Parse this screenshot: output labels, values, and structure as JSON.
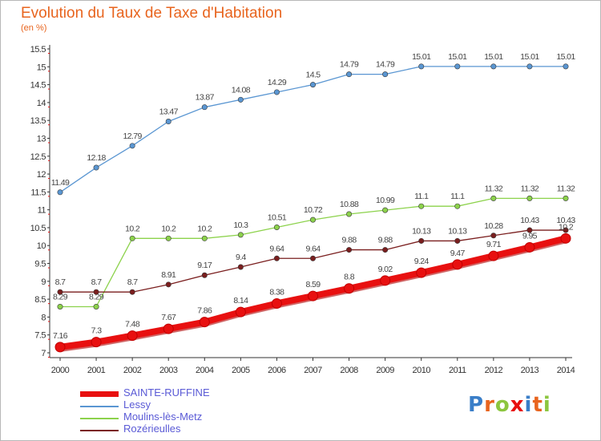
{
  "header": {
    "title": "Evolution du Taux de Taxe d'Habitation",
    "unit": "(en %)"
  },
  "brand": {
    "logo_text": "Proxiti"
  },
  "chart_data": {
    "type": "line",
    "title": "Evolution du Taux de Taxe d'Habitation",
    "ylabel": "(en %)",
    "xlabel": "",
    "x": [
      "2000",
      "2001",
      "2002",
      "2003",
      "2004",
      "2005",
      "2006",
      "2007",
      "2008",
      "2009",
      "2010",
      "2011",
      "2012",
      "2013",
      "2014"
    ],
    "ylim": [
      7,
      15.5
    ],
    "yticks": [
      7,
      7.5,
      8,
      8.5,
      9,
      9.5,
      10,
      10.5,
      11,
      11.5,
      12,
      12.5,
      13,
      13.5,
      14,
      14.5,
      15,
      15.5
    ],
    "grid": false,
    "legend_position": "bottom-left",
    "series": [
      {
        "name": "SAINTE-RUFFINE",
        "color": "#e81010",
        "values": [
          7.16,
          7.3,
          7.48,
          7.67,
          7.86,
          8.14,
          8.38,
          8.59,
          8.8,
          9.02,
          9.24,
          9.47,
          9.71,
          9.95,
          10.2
        ],
        "labels": [
          "7.16",
          "7.3",
          "7.48",
          "7.67",
          "7.86",
          "8.14",
          "8.38",
          "8.59",
          "8.8",
          "9.02",
          "9.24",
          "9.47",
          "9.71",
          "9.95",
          "10.2"
        ]
      },
      {
        "name": "Lessy",
        "color": "#5a96d2",
        "values": [
          11.49,
          12.18,
          12.79,
          13.47,
          13.87,
          14.08,
          14.29,
          14.5,
          14.79,
          14.79,
          15.01,
          15.01,
          15.01,
          15.01,
          15.01
        ],
        "labels": [
          "11.49",
          "12.18",
          "12.79",
          "13.47",
          "13.87",
          "14.08",
          "14.29",
          "14.5",
          "14.79",
          "14.79",
          "15.01",
          "15.01",
          "15.01",
          "15.01",
          "15.01"
        ]
      },
      {
        "name": "Moulins-lès-Metz",
        "color": "#8cd24b",
        "values": [
          8.29,
          8.29,
          10.2,
          10.2,
          10.2,
          10.3,
          10.51,
          10.72,
          10.88,
          10.99,
          11.1,
          11.1,
          11.32,
          11.32,
          11.32
        ],
        "labels": [
          "8.29",
          "8.29",
          "10.2",
          "10.2",
          "10.2",
          "10.3",
          "10.51",
          "10.72",
          "10.88",
          "10.99",
          "11.1",
          "11.1",
          "11.32",
          "11.32",
          "11.32"
        ]
      },
      {
        "name": "Rozérieulles",
        "color": "#7a1e1e",
        "values": [
          8.7,
          8.7,
          8.7,
          8.91,
          9.17,
          9.4,
          9.64,
          9.64,
          9.88,
          9.88,
          10.13,
          10.13,
          10.28,
          10.43,
          10.43
        ],
        "labels": [
          "8.7",
          "8.7",
          "8.7",
          "8.91",
          "9.17",
          "9.4",
          "9.64",
          "9.64",
          "9.88",
          "9.88",
          "10.13",
          "10.13",
          "10.28",
          "10.43",
          "10.43"
        ]
      }
    ]
  }
}
